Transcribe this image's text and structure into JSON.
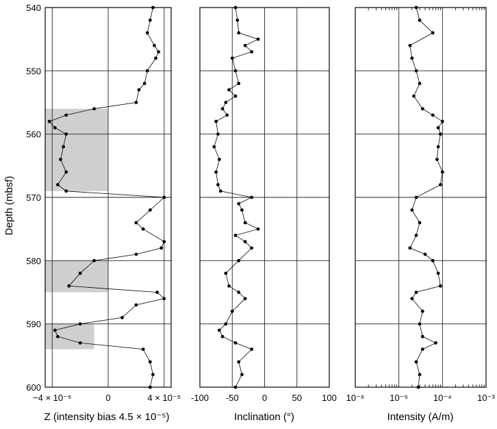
{
  "chart_data": [
    {
      "type": "line",
      "panel": "Z",
      "xlabel": "Z (intensity bias 4.5 × 10⁻⁵)",
      "ylabel": "Depth (mbsf)",
      "xlim": [
        -4.5e-05,
        4.5e-05
      ],
      "ylim": [
        600,
        540
      ],
      "x_ticks": [
        {
          "value": -4e-05,
          "label": "−4 × 10⁻⁵"
        },
        {
          "value": 0,
          "label": "0"
        },
        {
          "value": 4e-05,
          "label": "4 × 10⁻⁵"
        }
      ],
      "y_ticks": [
        540,
        550,
        560,
        570,
        580,
        590,
        600
      ],
      "grid": true,
      "marker": "dot",
      "shaded_intervals": [
        {
          "depth_top": 556,
          "depth_bottom": 569,
          "x_from": -4.5e-05,
          "x_to": 0
        },
        {
          "depth_top": 580,
          "depth_bottom": 585,
          "x_from": -4.5e-05,
          "x_to": 0
        },
        {
          "depth_top": 590,
          "depth_bottom": 594,
          "x_from": -4.5e-05,
          "x_to": -1e-05
        }
      ],
      "series": [
        {
          "x_units": "Z",
          "points": [
            [
              540,
              3.2e-05
            ],
            [
              542,
              3e-05
            ],
            [
              544,
              2.8e-05
            ],
            [
              546,
              3.3e-05
            ],
            [
              547,
              3.6e-05
            ],
            [
              548,
              3.4e-05
            ],
            [
              550,
              2.8e-05
            ],
            [
              552,
              2.6e-05
            ],
            [
              553,
              2.2e-05
            ],
            [
              555,
              2e-05
            ],
            [
              556,
              -1e-05
            ],
            [
              557,
              -3e-05
            ],
            [
              558,
              -4.2e-05
            ],
            [
              559,
              -3.8e-05
            ],
            [
              560,
              -3e-05
            ],
            [
              562,
              -3.2e-05
            ],
            [
              564,
              -3.4e-05
            ],
            [
              566,
              -3e-05
            ],
            [
              568,
              -3.6e-05
            ],
            [
              569,
              -3e-05
            ],
            [
              570,
              4e-05
            ],
            [
              572,
              3e-05
            ],
            [
              574,
              2e-05
            ],
            [
              575,
              2.5e-05
            ],
            [
              577,
              4e-05
            ],
            [
              578,
              3.8e-05
            ],
            [
              579,
              2e-05
            ],
            [
              580,
              -1e-05
            ],
            [
              582,
              -2e-05
            ],
            [
              584,
              -2.8e-05
            ],
            [
              585,
              3.5e-05
            ],
            [
              586,
              4e-05
            ],
            [
              587,
              2e-05
            ],
            [
              589,
              1e-05
            ],
            [
              590,
              -2e-05
            ],
            [
              591,
              -3.8e-05
            ],
            [
              592,
              -3.6e-05
            ],
            [
              593,
              -2e-05
            ],
            [
              594,
              2.5e-05
            ],
            [
              596,
              3e-05
            ],
            [
              598,
              3.2e-05
            ],
            [
              600,
              3e-05
            ]
          ]
        }
      ]
    },
    {
      "type": "line",
      "panel": "Inclination",
      "xlabel": "Inclination (°)",
      "xlim": [
        -100,
        100
      ],
      "ylim": [
        600,
        540
      ],
      "x_ticks": [
        {
          "value": -100,
          "label": "-100"
        },
        {
          "value": -50,
          "label": "-50"
        },
        {
          "value": 0,
          "label": "0"
        },
        {
          "value": 50,
          "label": "50"
        },
        {
          "value": 100,
          "label": "100"
        }
      ],
      "y_ticks": [
        540,
        550,
        560,
        570,
        580,
        590,
        600
      ],
      "grid": true,
      "marker": "dot",
      "series": [
        {
          "points": [
            [
              540,
              -45
            ],
            [
              542,
              -42
            ],
            [
              544,
              -40
            ],
            [
              545,
              -10
            ],
            [
              546,
              -30
            ],
            [
              547,
              -20
            ],
            [
              548,
              -50
            ],
            [
              550,
              -45
            ],
            [
              552,
              -40
            ],
            [
              553,
              -55
            ],
            [
              554,
              -45
            ],
            [
              555,
              -60
            ],
            [
              556,
              -65
            ],
            [
              557,
              -58
            ],
            [
              558,
              -75
            ],
            [
              560,
              -72
            ],
            [
              562,
              -78
            ],
            [
              564,
              -70
            ],
            [
              566,
              -75
            ],
            [
              568,
              -72
            ],
            [
              569,
              -68
            ],
            [
              570,
              -20
            ],
            [
              571,
              -40
            ],
            [
              572,
              -35
            ],
            [
              574,
              -30
            ],
            [
              575,
              -10
            ],
            [
              576,
              -45
            ],
            [
              577,
              -30
            ],
            [
              578,
              -20
            ],
            [
              580,
              -40
            ],
            [
              582,
              -60
            ],
            [
              584,
              -55
            ],
            [
              585,
              -40
            ],
            [
              586,
              -30
            ],
            [
              588,
              -50
            ],
            [
              590,
              -60
            ],
            [
              591,
              -70
            ],
            [
              592,
              -65
            ],
            [
              593,
              -45
            ],
            [
              594,
              -20
            ],
            [
              596,
              -40
            ],
            [
              598,
              -35
            ],
            [
              600,
              -45
            ]
          ]
        }
      ]
    },
    {
      "type": "line",
      "panel": "Intensity",
      "xlabel": "Intensity (A/m)",
      "xscale": "log",
      "xlim": [
        1e-06,
        0.001
      ],
      "ylim": [
        600,
        540
      ],
      "x_ticks": [
        {
          "value": 1e-06,
          "label": "10⁻⁶"
        },
        {
          "value": 1e-05,
          "label": "10⁻⁵"
        },
        {
          "value": 0.0001,
          "label": "10⁻⁴"
        },
        {
          "value": 0.001,
          "label": "10⁻³"
        }
      ],
      "y_ticks": [
        540,
        550,
        560,
        570,
        580,
        590,
        600
      ],
      "grid": true,
      "marker": "dot",
      "series": [
        {
          "points": [
            [
              540,
              2.5e-05
            ],
            [
              542,
              3e-05
            ],
            [
              544,
              6e-05
            ],
            [
              546,
              1.8e-05
            ],
            [
              548,
              2e-05
            ],
            [
              550,
              2.5e-05
            ],
            [
              552,
              3e-05
            ],
            [
              554,
              2.2e-05
            ],
            [
              556,
              3.5e-05
            ],
            [
              557,
              6e-05
            ],
            [
              558,
              0.0001
            ],
            [
              559,
              8e-05
            ],
            [
              560,
              9e-05
            ],
            [
              562,
              8e-05
            ],
            [
              564,
              7.5e-05
            ],
            [
              566,
              0.0001
            ],
            [
              568,
              9e-05
            ],
            [
              570,
              2.5e-05
            ],
            [
              572,
              2e-05
            ],
            [
              574,
              3e-05
            ],
            [
              576,
              2.5e-05
            ],
            [
              578,
              1.8e-05
            ],
            [
              579,
              4e-05
            ],
            [
              580,
              6e-05
            ],
            [
              582,
              8e-05
            ],
            [
              584,
              9e-05
            ],
            [
              585,
              2.5e-05
            ],
            [
              586,
              2e-05
            ],
            [
              588,
              3.5e-05
            ],
            [
              590,
              3e-05
            ],
            [
              592,
              3.5e-05
            ],
            [
              593,
              7e-05
            ],
            [
              594,
              3.5e-05
            ],
            [
              596,
              2.5e-05
            ],
            [
              598,
              3e-05
            ],
            [
              600,
              2.8e-05
            ]
          ]
        }
      ]
    }
  ]
}
